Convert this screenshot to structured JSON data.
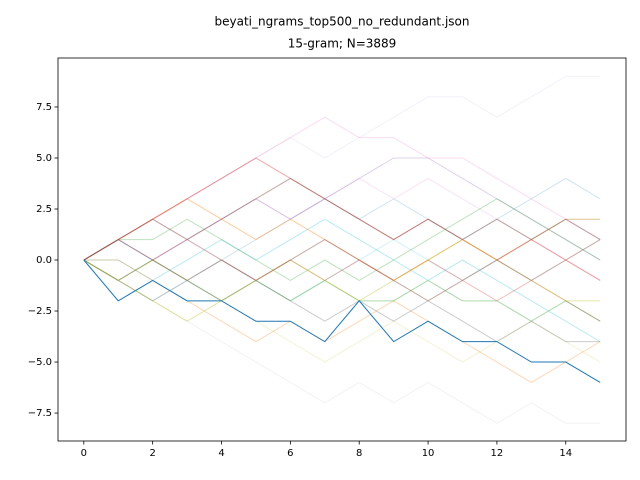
{
  "chart_data": {
    "type": "line",
    "title": "beyati_ngrams_top500_no_redundant.json",
    "subtitle": "15-gram; N=3889",
    "x": [
      0,
      1,
      2,
      3,
      4,
      5,
      6,
      7,
      8,
      9,
      10,
      11,
      12,
      13,
      14,
      15
    ],
    "xlim": [
      -0.75,
      15.75
    ],
    "xticks": [
      0,
      2,
      4,
      6,
      8,
      10,
      12,
      14
    ],
    "ylim": [
      -8.87,
      9.9
    ],
    "yticks": [
      {
        "value": -7.5,
        "label": "−7.5"
      },
      {
        "value": -5,
        "label": "−5.0"
      },
      {
        "value": -2.5,
        "label": "−2.5"
      },
      {
        "value": 0,
        "label": "0.0"
      },
      {
        "value": 2.5,
        "label": "2.5"
      },
      {
        "value": 5,
        "label": "5.0"
      },
      {
        "value": 7.5,
        "label": "7.5"
      }
    ],
    "series": [
      {
        "color": "#1f77b4",
        "alpha": 1,
        "values": [
          0,
          -2,
          -1,
          -2,
          -2,
          -3,
          -3,
          -4,
          -2,
          -4,
          -3,
          -4,
          -4,
          -5,
          -5,
          -6
        ]
      },
      {
        "color": "#ff7f0e",
        "alpha": 0.4,
        "values": [
          0,
          1,
          2,
          3,
          2,
          1,
          2,
          1,
          0,
          -1,
          0,
          1,
          0,
          1,
          2,
          2
        ]
      },
      {
        "color": "#2ca02c",
        "alpha": 0.4,
        "values": [
          0,
          -1,
          0,
          -1,
          -2,
          -1,
          -2,
          -1,
          -2,
          -2,
          -1,
          -2,
          -2,
          -3,
          -2,
          -3
        ]
      },
      {
        "color": "#d62728",
        "alpha": 0.4,
        "values": [
          0,
          1,
          2,
          3,
          4,
          5,
          4,
          3,
          2,
          1,
          2,
          1,
          0,
          1,
          0,
          -1
        ]
      },
      {
        "color": "#9467bd",
        "alpha": 0.3,
        "values": [
          0,
          1,
          0,
          1,
          2,
          3,
          2,
          3,
          4,
          5,
          5,
          4,
          3,
          2,
          1,
          0
        ]
      },
      {
        "color": "#8c564b",
        "alpha": 0.5,
        "values": [
          0,
          1,
          0,
          -1,
          0,
          -1,
          0,
          1,
          0,
          -1,
          -2,
          -1,
          0,
          -1,
          0,
          1
        ]
      },
      {
        "color": "#e377c2",
        "alpha": 0.25,
        "values": [
          0,
          1,
          2,
          3,
          4,
          5,
          6,
          7,
          6,
          6,
          5,
          5,
          4,
          3,
          2,
          1
        ]
      },
      {
        "color": "#7f7f7f",
        "alpha": 0.4,
        "values": [
          0,
          -1,
          -2,
          -1,
          -2,
          -1,
          -2,
          -3,
          -2,
          -3,
          -2,
          -3,
          -4,
          -3,
          -4,
          -4
        ]
      },
      {
        "color": "#bcbd22",
        "alpha": 0.4,
        "values": [
          0,
          -1,
          -2,
          -3,
          -2,
          -1,
          0,
          -1,
          -2,
          -1,
          0,
          1,
          0,
          -1,
          -2,
          -2
        ]
      },
      {
        "color": "#17becf",
        "alpha": 0.3,
        "values": [
          0,
          0,
          -1,
          0,
          1,
          0,
          1,
          2,
          1,
          0,
          -1,
          0,
          -1,
          -2,
          -3,
          -4
        ]
      },
      {
        "color": "#1f77b4",
        "alpha": 0.2,
        "values": [
          0,
          1,
          0,
          1,
          0,
          1,
          2,
          3,
          2,
          3,
          2,
          1,
          2,
          3,
          4,
          3
        ]
      },
      {
        "color": "#ff7f0e",
        "alpha": 0.3,
        "values": [
          0,
          0,
          -1,
          -2,
          -3,
          -4,
          -3,
          -4,
          -3,
          -2,
          -3,
          -4,
          -5,
          -6,
          -5,
          -4
        ]
      },
      {
        "color": "#2ca02c",
        "alpha": 0.3,
        "values": [
          0,
          1,
          1,
          2,
          1,
          0,
          -1,
          0,
          -1,
          0,
          1,
          2,
          3,
          2,
          1,
          0
        ]
      },
      {
        "color": "#d62728",
        "alpha": 0.3,
        "values": [
          0,
          -1,
          0,
          1,
          0,
          -1,
          0,
          -1,
          0,
          -1,
          0,
          -1,
          -2,
          -1,
          -2,
          -3
        ]
      },
      {
        "color": "#8c564b",
        "alpha": 0.5,
        "values": [
          0,
          1,
          2,
          1,
          2,
          3,
          4,
          3,
          2,
          1,
          2,
          1,
          2,
          1,
          2,
          1
        ]
      },
      {
        "color": "#9467bd",
        "alpha": 0.1,
        "values": [
          0,
          1,
          2,
          3,
          4,
          5,
          6,
          5,
          6,
          7,
          8,
          8,
          7,
          8,
          9,
          9
        ]
      },
      {
        "color": "#7f7f7f",
        "alpha": 0.1,
        "values": [
          0,
          -1,
          -2,
          -3,
          -4,
          -5,
          -6,
          -7,
          -6,
          -7,
          -6,
          -7,
          -8,
          -7,
          -8,
          -8
        ]
      },
      {
        "color": "#bcbd22",
        "alpha": 0.2,
        "values": [
          0,
          -1,
          0,
          -1,
          -2,
          -3,
          -4,
          -5,
          -4,
          -3,
          -4,
          -5,
          -4,
          -3,
          -4,
          -5
        ]
      },
      {
        "color": "#e377c2",
        "alpha": 0.2,
        "values": [
          0,
          1,
          2,
          1,
          2,
          3,
          2,
          3,
          4,
          3,
          4,
          3,
          2,
          1,
          0,
          -1
        ]
      },
      {
        "color": "#17becf",
        "alpha": 0.2,
        "values": [
          0,
          -1,
          -2,
          -1,
          0,
          -1,
          -2,
          -1,
          0,
          1,
          0,
          -1,
          0,
          1,
          2,
          2
        ]
      }
    ]
  }
}
